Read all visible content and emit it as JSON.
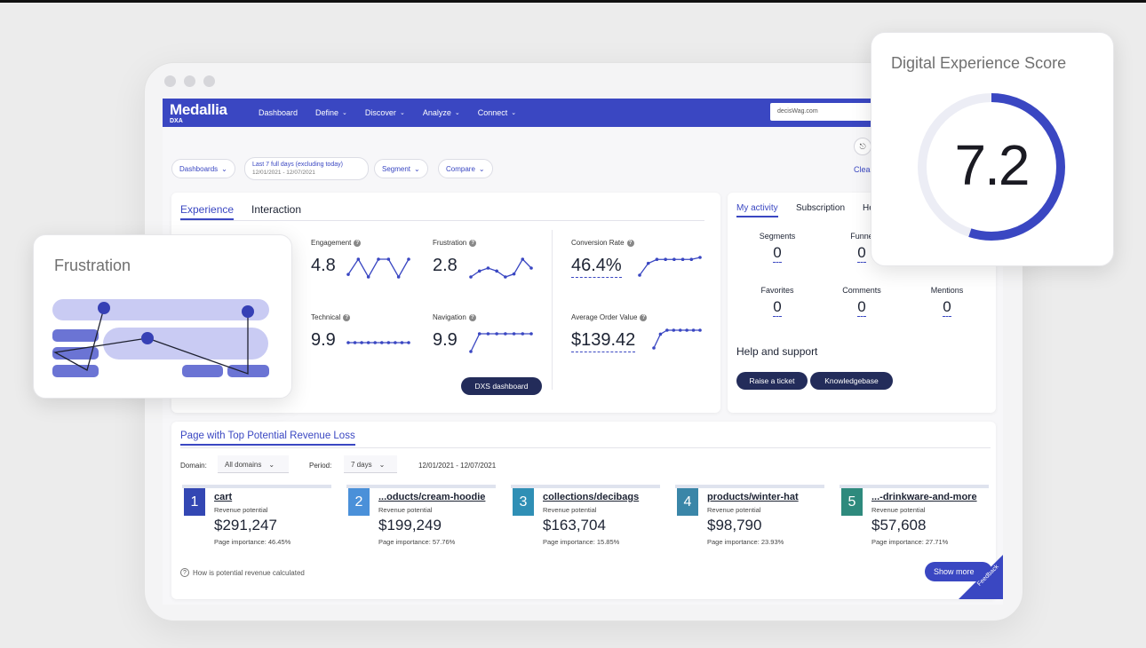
{
  "colors": {
    "accent": "#3a47c2",
    "dark_button": "#232c5a",
    "rank1": "#3347b3",
    "rank2": "#4a90d9",
    "rank3": "#2f8fb5",
    "rank4": "#3a86a8",
    "rank5": "#2e8a7d"
  },
  "nav": {
    "brand": "Medallia",
    "brand_sub": "DXA",
    "items": [
      "Dashboard",
      "Define",
      "Discover",
      "Analyze",
      "Connect"
    ],
    "search_value": "decisWag.com"
  },
  "filters": {
    "dashboards": "Dashboards",
    "date_range": "Last 7 full days (excluding today)",
    "date_sub": "12/01/2021 - 12/07/2021",
    "segment": "Segment",
    "compare": "Compare",
    "clear": "Clea"
  },
  "experience": {
    "tabs": [
      "Experience",
      "Interaction"
    ],
    "metrics": [
      {
        "label": "Engagement",
        "value": "4.8",
        "spark": [
          3,
          9,
          2,
          9,
          9,
          2,
          9
        ]
      },
      {
        "label": "Frustration",
        "value": "2.8",
        "spark": [
          3,
          5,
          6,
          5,
          3,
          4,
          9,
          6
        ]
      },
      {
        "label": "Technical",
        "value": "9.9",
        "spark": [
          5,
          5,
          5,
          5,
          5,
          5,
          5,
          5,
          5,
          5
        ]
      },
      {
        "label": "Navigation",
        "value": "9.9",
        "spark": [
          1,
          9,
          9,
          9,
          9,
          9,
          9,
          9
        ]
      },
      {
        "label": "Conversion Rate",
        "value": "46.4%",
        "spark": [
          1,
          7,
          9,
          9,
          9,
          9,
          9,
          10
        ]
      },
      {
        "label": "Average Order Value",
        "value": "$139.42",
        "spark": [
          1,
          8,
          10,
          10,
          10,
          10,
          10,
          10
        ]
      }
    ],
    "dxs_button": "DXS dashboard"
  },
  "activity": {
    "tabs": [
      "My activity",
      "Subscription",
      "He"
    ],
    "stats": [
      {
        "label": "Segments",
        "value": "0"
      },
      {
        "label": "Funne",
        "value": "0"
      },
      {
        "label": "Favorites",
        "value": "0"
      },
      {
        "label": "Comments",
        "value": "0"
      },
      {
        "label": "Mentions",
        "value": "0"
      }
    ],
    "help_title": "Help and support",
    "raise_ticket": "Raise a ticket",
    "knowledgebase": "Knowledgebase"
  },
  "revenue": {
    "title": "Page with Top Potential Revenue Loss",
    "domain_label": "Domain:",
    "domain_value": "All domains",
    "period_label": "Period:",
    "period_value": "7 days",
    "date_range": "12/01/2021 - 12/07/2021",
    "items": [
      {
        "rank": "1",
        "name": "cart",
        "sub": "Revenue potential",
        "value": "$291,247",
        "importance": "Page importance: 46.45%"
      },
      {
        "rank": "2",
        "name": "...oducts/cream-hoodie",
        "sub": "Revenue potential",
        "value": "$199,249",
        "importance": "Page importance: 57.76%"
      },
      {
        "rank": "3",
        "name": "collections/decibags",
        "sub": "Revenue potential",
        "value": "$163,704",
        "importance": "Page importance: 15.85%"
      },
      {
        "rank": "4",
        "name": "products/winter-hat",
        "sub": "Revenue potential",
        "value": "$98,790",
        "importance": "Page importance: 23.93%"
      },
      {
        "rank": "5",
        "name": "...-drinkware-and-more",
        "sub": "Revenue potential",
        "value": "$57,608",
        "importance": "Page importance: 27.71%"
      }
    ],
    "howto": "How is potential revenue calculated",
    "show_more": "Show more",
    "feedback": "Feedback"
  },
  "frustration_card": {
    "title": "Frustration"
  },
  "score_card": {
    "title": "Digital Experience Score",
    "value": "7.2",
    "fraction": 0.55
  }
}
